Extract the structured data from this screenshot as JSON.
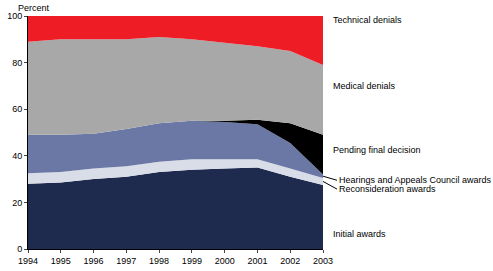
{
  "chart_data": {
    "type": "area",
    "stacked": true,
    "y_label": "Percent",
    "x": [
      1994,
      1995,
      1996,
      1997,
      1998,
      1999,
      2000,
      2001,
      2002,
      2003
    ],
    "xlim": [
      1994,
      2003
    ],
    "xticks": [
      1994,
      1995,
      1996,
      1997,
      1998,
      1999,
      2000,
      2001,
      2002,
      2003
    ],
    "ylim": [
      0,
      100
    ],
    "yticks": [
      0,
      20,
      40,
      60,
      80,
      100
    ],
    "grid": false,
    "series": [
      {
        "name": "Initial awards",
        "color": "#1f2a4f",
        "values": [
          28,
          28.5,
          30,
          31,
          33,
          34,
          34.5,
          35,
          31,
          27.5
        ]
      },
      {
        "name": "Reconsideration awards",
        "color": "#d9dde8",
        "values": [
          4.5,
          4.5,
          4.5,
          4.5,
          4.5,
          4.5,
          4,
          3.5,
          3.5,
          3
        ]
      },
      {
        "name": "Hearings and Appeals Council awards",
        "color": "#6b78a6",
        "values": [
          16.5,
          16,
          15,
          16,
          16.5,
          16.5,
          16,
          15,
          11,
          1.5
        ]
      },
      {
        "name": "Pending final decision",
        "color": "#000000",
        "values": [
          0,
          0,
          0,
          0,
          0,
          0,
          0.5,
          2,
          8.5,
          17
        ]
      },
      {
        "name": "Medical denials",
        "color": "#a8a8a8",
        "values": [
          40,
          41,
          40.5,
          38.5,
          37,
          35,
          33.5,
          31.5,
          31,
          30
        ]
      },
      {
        "name": "Technical denials",
        "color": "#ee1c25",
        "values": [
          11,
          10,
          10,
          10,
          9,
          10,
          11.5,
          13,
          15,
          21
        ]
      }
    ]
  }
}
